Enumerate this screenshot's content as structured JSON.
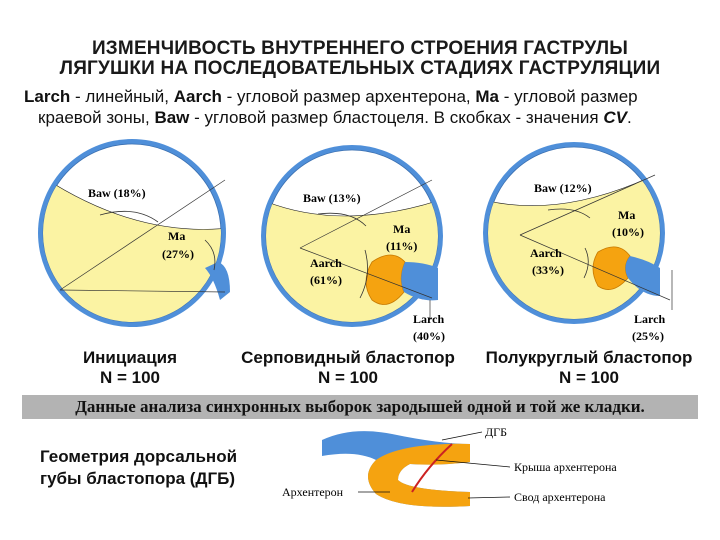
{
  "title_line1": "ИЗМЕНЧИВОСТЬ ВНУТРЕННЕГО СТРОЕНИЯ ГАСТРУЛЫ",
  "title_line2": "ЛЯГУШКИ НА ПОСЛЕДОВАТЕЛЬНЫХ СТАДИЯХ ГАСТРУЛЯЦИИ",
  "description": {
    "larch_term": "Larch",
    "larch_text": " - линейный, ",
    "aarch_term": "Aarch",
    "aarch_text": " - угловой размер архентерона, ",
    "ma_term": "Ma",
    "ma_text": " - угловой размер",
    "line2_text": "краевой зоны, ",
    "baw_term": "Baw",
    "baw_text": " - угловой размер бластоцеля. В скобках - значения ",
    "cv_term": "CV",
    "cv_end": "."
  },
  "stages": [
    {
      "name": "Инициация",
      "n": "N = 100",
      "baw": "Baw (18%)",
      "ma_label": "Ma",
      "ma_value": "(27%)"
    },
    {
      "name": "Серповидный бластопор",
      "n": "N = 100",
      "baw": "Baw (13%)",
      "ma_label": "Ma",
      "ma_value": "(11%)",
      "aarch_label": "Aarch",
      "aarch_value": "(61%)",
      "larch_label": "Larch",
      "larch_value": "(40%)"
    },
    {
      "name": "Полукруглый бластопор",
      "n": "N = 100",
      "baw": "Baw (12%)",
      "ma_label": "Ma",
      "ma_value": "(10%)",
      "aarch_label": "Aarch",
      "aarch_value": "(33%)",
      "larch_label": "Larch",
      "larch_value": "(25%)"
    }
  ],
  "banner": "Данные анализа синхронных выборок зародышей  одной и той же кладки.",
  "geometry": {
    "title_line1": "Геометрия дорсальной",
    "title_line2": "губы бластопора (ДГБ)",
    "dgb": "ДГБ",
    "roof": "Крыша архентерона",
    "archenteron": "Архентерон",
    "vault": "Свод архентерона"
  },
  "colors": {
    "blue": "#4f8fd9",
    "yellow": "#fbf3a3",
    "orange": "#f5a310",
    "red": "#cc2222"
  }
}
